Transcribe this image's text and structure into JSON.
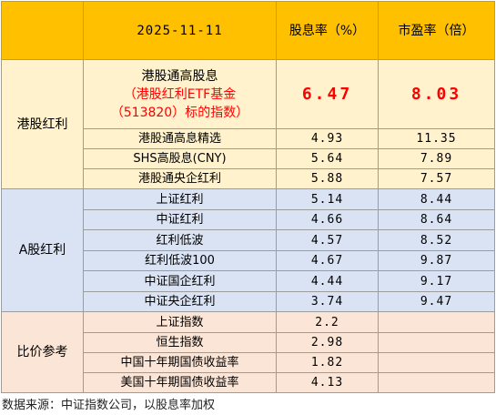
{
  "header": {
    "date": "2025-11-11",
    "dividend_yield": "股息率（%）",
    "pe": "市盈率（倍）"
  },
  "groups": {
    "hk": "港股红利",
    "a": "A股红利",
    "ref": "比价参考"
  },
  "featured": {
    "name_line1": "港股通高股息",
    "name_line2": "（港股红利ETF基金",
    "name_line3": "（513820）标的指数）",
    "dividend_yield": "6.47",
    "pe": "8.03",
    "highlight_color": "#ff0000"
  },
  "hk_rows": [
    {
      "name": "港股通高息精选",
      "dividend_yield": "4.93",
      "pe": "11.35"
    },
    {
      "name": "SHS高股息(CNY)",
      "dividend_yield": "5.64",
      "pe": "7.89"
    },
    {
      "name": "港股通央企红利",
      "dividend_yield": "5.88",
      "pe": "7.57"
    }
  ],
  "a_rows": [
    {
      "name": "上证红利",
      "dividend_yield": "5.14",
      "pe": "8.44"
    },
    {
      "name": "中证红利",
      "dividend_yield": "4.66",
      "pe": "8.64"
    },
    {
      "name": "红利低波",
      "dividend_yield": "4.57",
      "pe": "8.52"
    },
    {
      "name": "红利低波100",
      "dividend_yield": "4.67",
      "pe": "9.87"
    },
    {
      "name": "中证国企红利",
      "dividend_yield": "4.44",
      "pe": "9.17"
    },
    {
      "name": "中证央企红利",
      "dividend_yield": "3.74",
      "pe": "9.47"
    }
  ],
  "ref_rows": [
    {
      "name": "上证指数",
      "dividend_yield": "2.2",
      "pe": ""
    },
    {
      "name": "恒生指数",
      "dividend_yield": "2.98",
      "pe": ""
    },
    {
      "name": "中国十年期国债收益率",
      "dividend_yield": "1.82",
      "pe": ""
    },
    {
      "name": "美国十年期国债收益率",
      "dividend_yield": "4.13",
      "pe": ""
    }
  ],
  "source": "数据来源：中证指数公司，以股息率加权",
  "colors": {
    "header_bg": "#ffc000",
    "hk_bg": "#fff2cc",
    "a_bg": "#dae3f3",
    "ref_bg": "#fbe5d6",
    "border": "#9c9c9c"
  }
}
